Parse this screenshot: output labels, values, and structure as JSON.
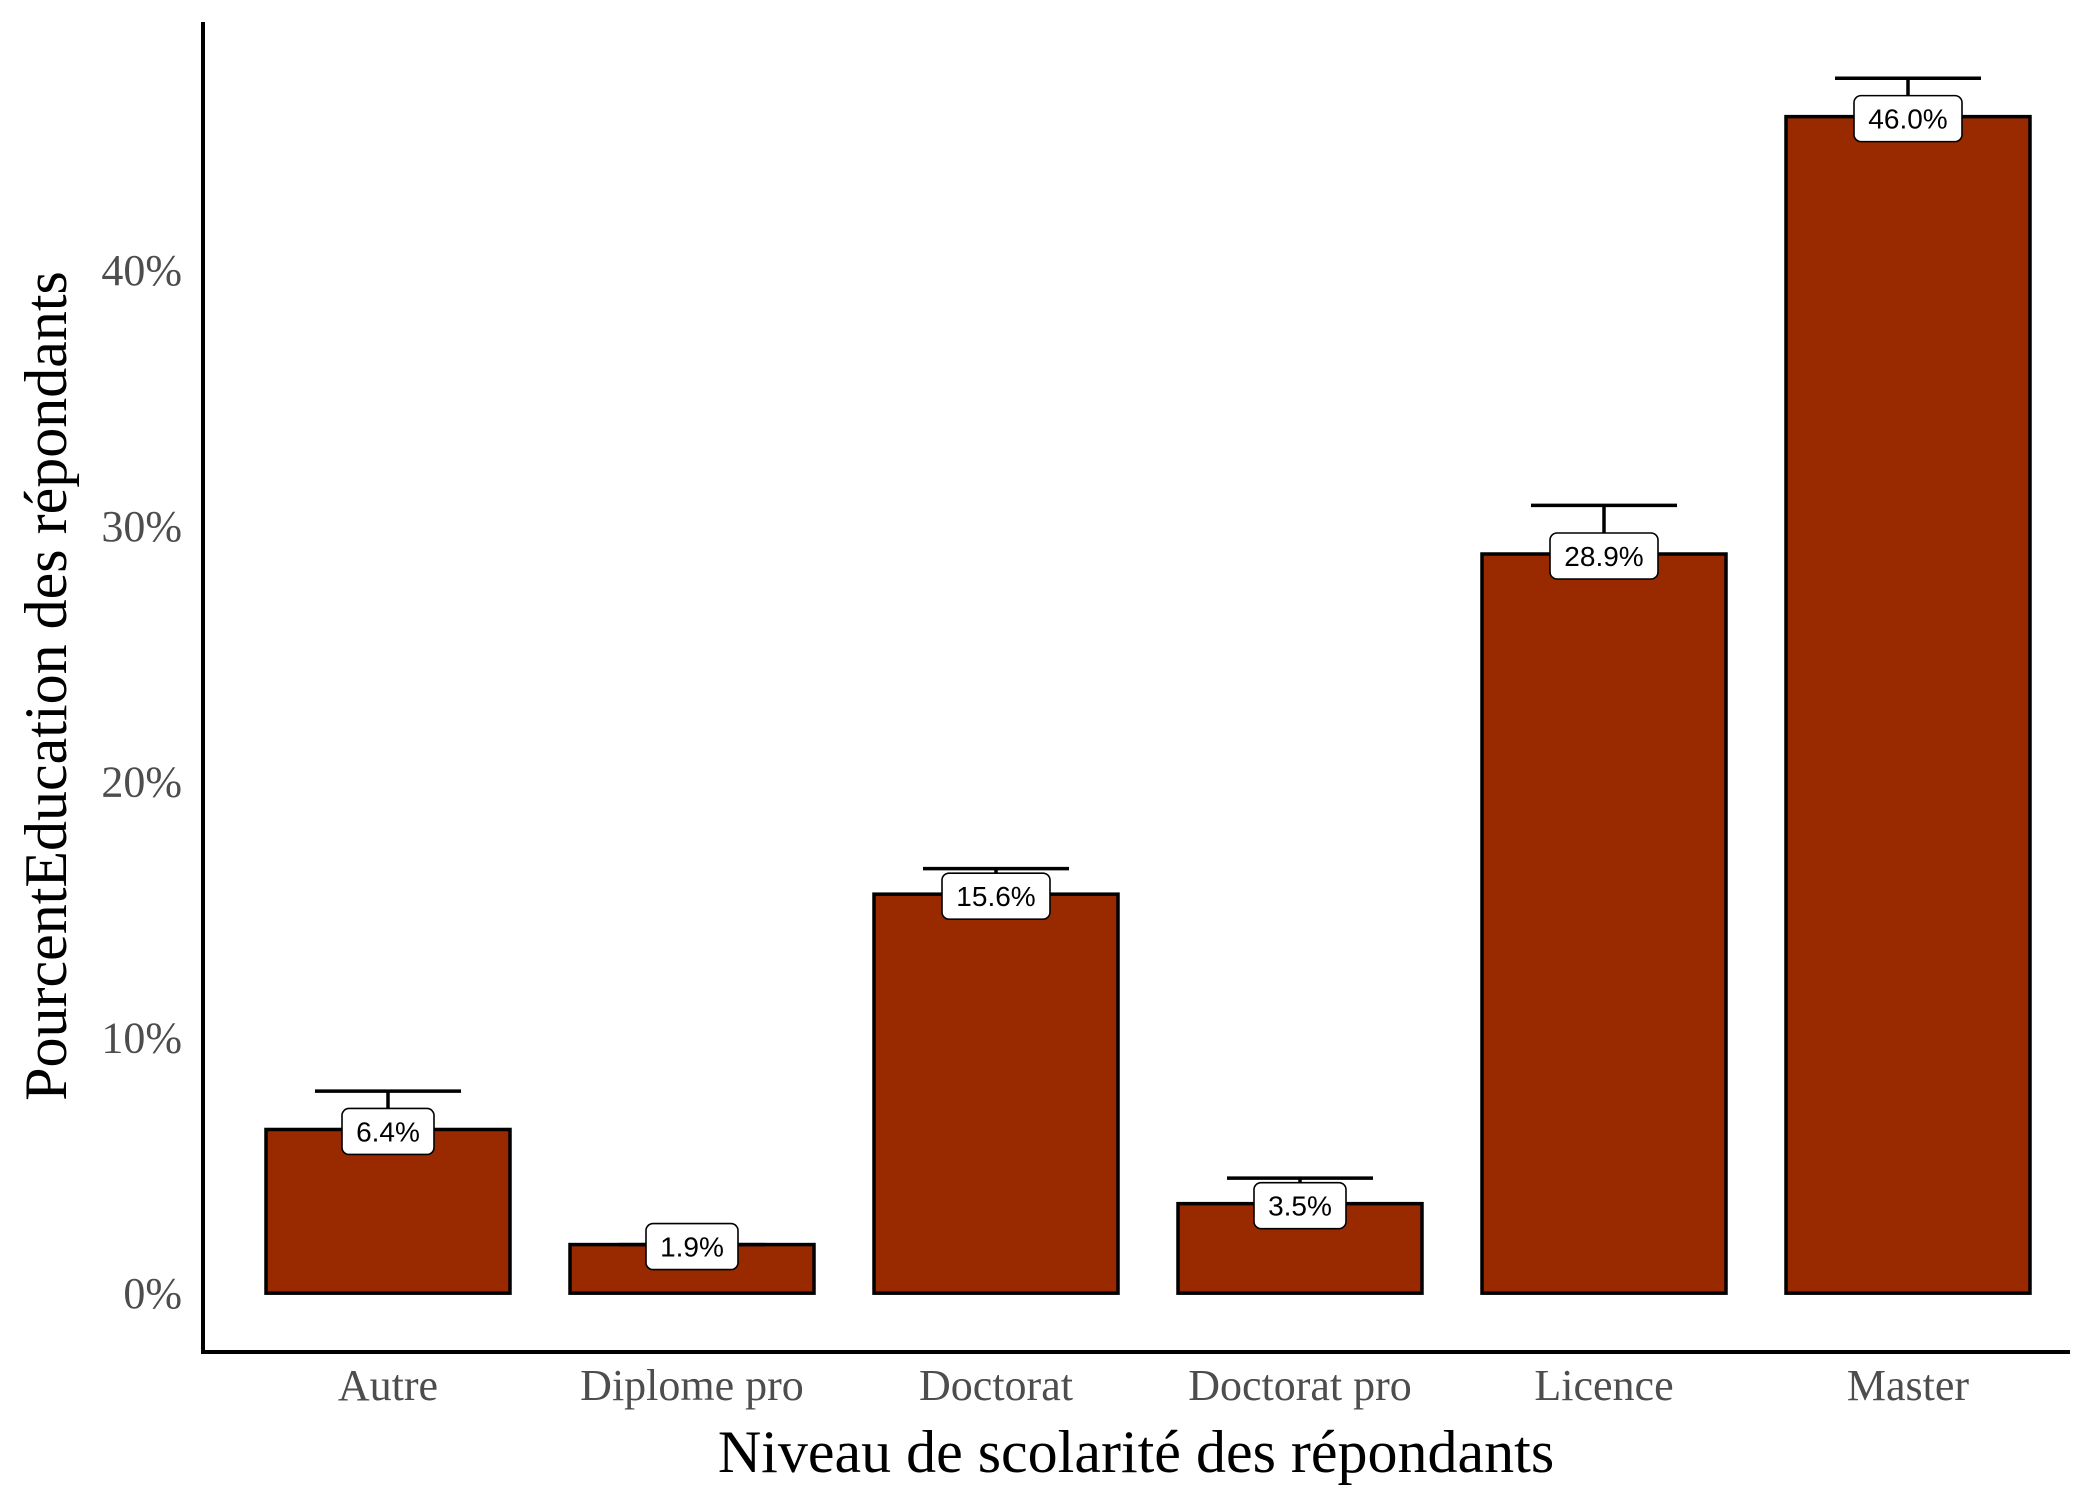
{
  "chart_data": {
    "type": "bar",
    "categories": [
      "Autre",
      "Diplome pro",
      "Doctorat",
      "Doctorat pro",
      "Licence",
      "Master"
    ],
    "values": [
      6.4,
      1.9,
      15.6,
      3.5,
      28.9,
      46.0
    ],
    "error_upper": [
      7.9,
      1.9,
      16.6,
      4.5,
      30.8,
      47.5
    ],
    "data_labels": [
      "6.4%",
      "1.9%",
      "15.6%",
      "3.5%",
      "28.9%",
      "46.0%"
    ],
    "xlabel": "Niveau de scolarité des répondants",
    "ylabel": "PourcentEducation des répondants",
    "yticks": [
      0,
      10,
      20,
      30,
      40
    ],
    "ytick_labels": [
      "0%",
      "10%",
      "20%",
      "30%",
      "40%"
    ],
    "ylim": [
      -2.3,
      49.7
    ],
    "grid": false,
    "legend": "none",
    "bar_color": "#992a00",
    "bar_outline": "#000000"
  }
}
